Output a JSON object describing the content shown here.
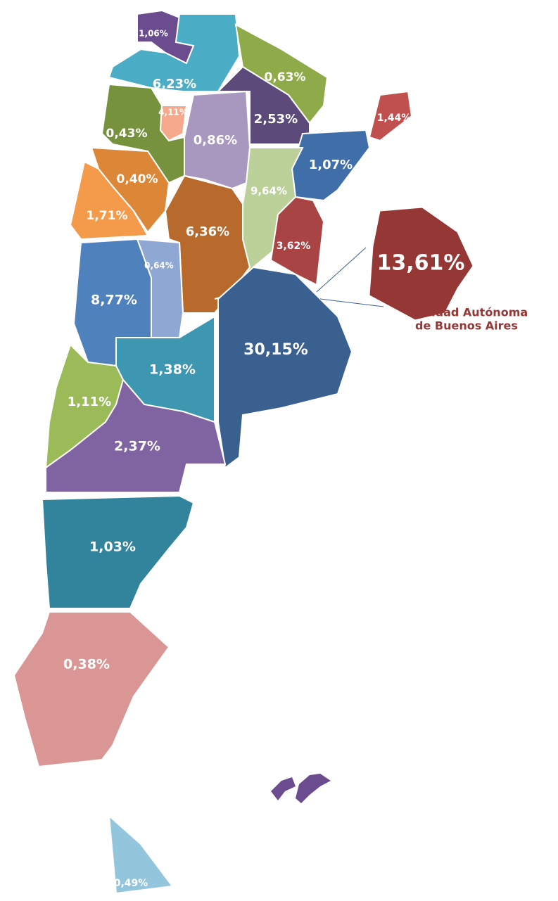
{
  "regions": [
    {
      "label": "1,06%",
      "color": "#6b4c8e"
    },
    {
      "label": "6,23%",
      "color": "#4bacc6"
    },
    {
      "label": "0,63%",
      "color": "#8faa48"
    },
    {
      "label": "2,53%",
      "color": "#5b4a7a"
    },
    {
      "label": "1,44%",
      "color": "#c0504d"
    },
    {
      "label": "0,86%",
      "color": "#a898bf"
    },
    {
      "label": "0,43%",
      "color": "#76923c"
    },
    {
      "label": "4,11%",
      "color": "#f4a98c"
    },
    {
      "label": "1,07%",
      "color": "#3f6ea8"
    },
    {
      "label": "0,40%",
      "color": "#dc8637"
    },
    {
      "label": "1,71%",
      "color": "#f39b4b"
    },
    {
      "label": "6,36%",
      "color": "#b8692c"
    },
    {
      "label": "9,64%",
      "color": "#bcd099"
    },
    {
      "label": "3,62%",
      "color": "#a94444"
    },
    {
      "label": "0,64%",
      "color": "#8fa8d3"
    },
    {
      "label": "8,77%",
      "color": "#4f81bd"
    },
    {
      "label": "30,15%",
      "color": "#3a6090"
    },
    {
      "label": "1,38%",
      "color": "#3d97b0"
    },
    {
      "label": "1,11%",
      "color": "#9bbb59"
    },
    {
      "label": "2,37%",
      "color": "#8064a2"
    },
    {
      "label": "1,03%",
      "color": "#31849b"
    },
    {
      "label": "0,38%",
      "color": "#d99694"
    },
    {
      "label": "0,49%",
      "color": "#93c5dc"
    }
  ],
  "inset": {
    "label": "13,61%",
    "color": "#953735",
    "caption": [
      "Ciudad Autónoma",
      "de Buenos Aires"
    ]
  }
}
